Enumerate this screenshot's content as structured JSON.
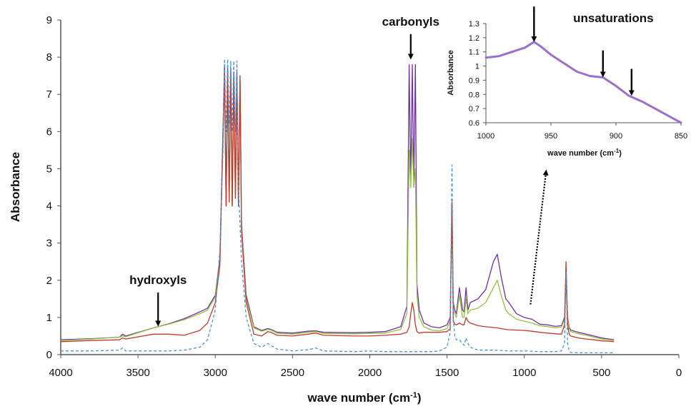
{
  "chart_data": [
    {
      "type": "line",
      "xlabel": "wave number (cm",
      "xlabel_sup": "-1",
      "xlabel_close": ")",
      "ylabel": "Absorbance",
      "xlim": [
        4000,
        0
      ],
      "ylim": [
        0,
        9
      ],
      "x_ticks": [
        "4000",
        "3500",
        "3000",
        "2500",
        "2000",
        "1500",
        "1000",
        "500",
        "0"
      ],
      "y_ticks": [
        "0",
        "1",
        "2",
        "3",
        "4",
        "5",
        "6",
        "7",
        "8",
        "9"
      ],
      "grid": false,
      "series": [
        {
          "color": "#7030A0",
          "style": "solid",
          "x": [
            4000,
            3800,
            3620,
            3600,
            3580,
            3400,
            3300,
            3200,
            3100,
            3050,
            3000,
            2970,
            2940,
            2930,
            2920,
            2910,
            2900,
            2890,
            2880,
            2870,
            2860,
            2850,
            2840,
            2830,
            2800,
            2750,
            2700,
            2660,
            2640,
            2600,
            2500,
            2400,
            2350,
            2300,
            2100,
            2000,
            1900,
            1800,
            1760,
            1745,
            1735,
            1725,
            1715,
            1705,
            1695,
            1680,
            1650,
            1600,
            1550,
            1500,
            1480,
            1468,
            1460,
            1450,
            1440,
            1420,
            1400,
            1390,
            1377,
            1365,
            1350,
            1300,
            1250,
            1200,
            1175,
            1150,
            1120,
            1100,
            1050,
            1000,
            950,
            900,
            850,
            800,
            760,
            740,
            730,
            720,
            710,
            700,
            650,
            600,
            550,
            500,
            450,
            420
          ],
          "y": [
            0.4,
            0.43,
            0.47,
            0.55,
            0.5,
            0.72,
            0.83,
            0.97,
            1.15,
            1.25,
            1.6,
            2.6,
            7.8,
            4.0,
            7.7,
            4.2,
            7.7,
            4.0,
            7.6,
            4.3,
            7.6,
            4.0,
            7.5,
            3.5,
            1.6,
            0.75,
            0.65,
            0.7,
            0.68,
            0.6,
            0.58,
            0.63,
            0.64,
            0.6,
            0.59,
            0.6,
            0.62,
            0.75,
            1.3,
            7.8,
            4.5,
            7.8,
            4.5,
            7.8,
            1.9,
            1.2,
            0.85,
            0.75,
            0.72,
            0.8,
            1.0,
            4.0,
            1.4,
            1.2,
            1.1,
            1.8,
            1.2,
            1.15,
            1.8,
            1.2,
            1.4,
            1.5,
            1.75,
            2.5,
            2.7,
            2.1,
            1.5,
            1.4,
            1.1,
            1.0,
            0.95,
            0.82,
            0.8,
            0.76,
            0.78,
            1.0,
            2.1,
            1.0,
            0.74,
            0.66,
            0.6,
            0.55,
            0.5,
            0.45,
            0.42,
            0.4
          ]
        },
        {
          "color": "#92C13F",
          "style": "solid",
          "x": [
            4000,
            3800,
            3620,
            3600,
            3580,
            3400,
            3300,
            3200,
            3100,
            3050,
            3000,
            2970,
            2940,
            2930,
            2920,
            2910,
            2900,
            2890,
            2880,
            2870,
            2860,
            2850,
            2840,
            2830,
            2800,
            2750,
            2700,
            2660,
            2640,
            2600,
            2500,
            2400,
            2350,
            2300,
            2100,
            2000,
            1900,
            1800,
            1760,
            1745,
            1735,
            1725,
            1715,
            1705,
            1695,
            1680,
            1650,
            1600,
            1550,
            1500,
            1480,
            1468,
            1460,
            1450,
            1440,
            1420,
            1400,
            1390,
            1377,
            1365,
            1350,
            1300,
            1250,
            1200,
            1175,
            1150,
            1120,
            1100,
            1050,
            1000,
            950,
            900,
            850,
            800,
            760,
            740,
            730,
            720,
            710,
            700,
            650,
            600,
            550,
            500,
            450,
            420
          ],
          "y": [
            0.38,
            0.42,
            0.47,
            0.5,
            0.48,
            0.72,
            0.82,
            0.94,
            1.1,
            1.2,
            1.55,
            2.5,
            7.6,
            4.0,
            7.6,
            4.1,
            7.6,
            4.0,
            7.5,
            4.2,
            7.5,
            4.0,
            7.4,
            3.4,
            1.5,
            0.72,
            0.63,
            0.68,
            0.66,
            0.58,
            0.55,
            0.6,
            0.62,
            0.57,
            0.56,
            0.57,
            0.58,
            0.68,
            1.1,
            5.5,
            4.5,
            5.8,
            4.5,
            5.0,
            1.6,
            1.0,
            0.75,
            0.66,
            0.64,
            0.7,
            0.9,
            3.9,
            1.2,
            1.1,
            1.0,
            1.6,
            1.0,
            1.0,
            1.5,
            1.1,
            1.2,
            1.25,
            1.4,
            1.8,
            2.0,
            1.6,
            1.2,
            1.1,
            0.95,
            0.9,
            0.85,
            0.78,
            0.75,
            0.72,
            0.74,
            0.95,
            2.3,
            0.95,
            0.7,
            0.62,
            0.56,
            0.52,
            0.47,
            0.42,
            0.4,
            0.38
          ]
        },
        {
          "color": "#C0392B",
          "style": "solid",
          "x": [
            4000,
            3800,
            3620,
            3600,
            3580,
            3400,
            3300,
            3200,
            3100,
            3050,
            3000,
            2970,
            2940,
            2930,
            2920,
            2910,
            2900,
            2890,
            2880,
            2870,
            2860,
            2850,
            2840,
            2830,
            2800,
            2750,
            2700,
            2660,
            2640,
            2600,
            2500,
            2400,
            2350,
            2300,
            2100,
            2000,
            1900,
            1800,
            1760,
            1745,
            1735,
            1725,
            1715,
            1705,
            1695,
            1680,
            1650,
            1600,
            1550,
            1500,
            1480,
            1468,
            1460,
            1450,
            1440,
            1420,
            1400,
            1390,
            1377,
            1365,
            1350,
            1300,
            1250,
            1200,
            1175,
            1150,
            1120,
            1100,
            1050,
            1000,
            950,
            900,
            850,
            800,
            760,
            740,
            730,
            720,
            710,
            700,
            650,
            600,
            550,
            500,
            450,
            420
          ],
          "y": [
            0.35,
            0.38,
            0.4,
            0.45,
            0.42,
            0.55,
            0.55,
            0.52,
            0.65,
            0.85,
            1.4,
            2.4,
            7.6,
            4.0,
            7.6,
            4.1,
            7.6,
            4.0,
            7.5,
            4.2,
            7.5,
            4.0,
            7.4,
            3.3,
            1.4,
            0.55,
            0.5,
            0.62,
            0.6,
            0.52,
            0.5,
            0.55,
            0.58,
            0.52,
            0.5,
            0.5,
            0.52,
            0.55,
            0.6,
            0.75,
            1.1,
            1.4,
            1.2,
            0.8,
            0.62,
            0.58,
            0.6,
            0.6,
            0.6,
            0.62,
            0.7,
            4.1,
            0.9,
            0.82,
            0.8,
            0.85,
            0.8,
            0.8,
            1.0,
            0.9,
            0.85,
            0.78,
            0.75,
            0.73,
            0.72,
            0.7,
            0.68,
            0.67,
            0.66,
            0.65,
            0.63,
            0.6,
            0.58,
            0.56,
            0.55,
            0.8,
            2.5,
            0.8,
            0.55,
            0.5,
            0.45,
            0.42,
            0.4,
            0.37,
            0.36,
            0.35
          ]
        },
        {
          "color": "#4A90D9",
          "style": "dashed",
          "x": [
            4000,
            3800,
            3620,
            3600,
            3580,
            3400,
            3300,
            3200,
            3100,
            3050,
            3000,
            2970,
            2950,
            2940,
            2930,
            2920,
            2910,
            2900,
            2890,
            2880,
            2870,
            2860,
            2850,
            2840,
            2830,
            2800,
            2750,
            2700,
            2660,
            2640,
            2600,
            2500,
            2400,
            2350,
            2300,
            2100,
            2000,
            1900,
            1800,
            1760,
            1730,
            1700,
            1600,
            1550,
            1500,
            1480,
            1468,
            1460,
            1450,
            1440,
            1420,
            1400,
            1390,
            1377,
            1365,
            1350,
            1300,
            1250,
            1200,
            1100,
            1000,
            900,
            800,
            760,
            740,
            730,
            720,
            710,
            700,
            650,
            600,
            550,
            500,
            450,
            420
          ],
          "y": [
            0.1,
            0.1,
            0.12,
            0.18,
            0.1,
            0.1,
            0.1,
            0.12,
            0.2,
            0.4,
            1.2,
            2.8,
            5.5,
            7.95,
            6.0,
            7.95,
            6.2,
            7.9,
            6.0,
            7.9,
            6.0,
            7.9,
            4.5,
            3.5,
            2.5,
            1.0,
            0.3,
            0.2,
            0.3,
            0.25,
            0.15,
            0.1,
            0.13,
            0.18,
            0.1,
            0.08,
            0.1,
            0.08,
            0.08,
            0.08,
            0.08,
            0.08,
            0.08,
            0.1,
            0.2,
            0.6,
            5.1,
            1.0,
            0.5,
            0.4,
            0.4,
            0.3,
            0.25,
            0.45,
            0.3,
            0.2,
            0.12,
            0.12,
            0.12,
            0.1,
            0.1,
            0.08,
            0.08,
            0.1,
            0.3,
            2.2,
            0.3,
            0.1,
            0.06,
            0.05,
            0.05,
            0.05,
            0.05,
            0.05,
            0.05
          ]
        }
      ],
      "annotations": [
        {
          "text": "hydroxyls",
          "x": 3370,
          "y": 1.9,
          "arrow_to": [
            3370,
            0.72
          ]
        },
        {
          "text": "carbonyls",
          "x": 1735,
          "y": 8.85,
          "arrow_to": [
            1735,
            7.9
          ]
        }
      ],
      "callout_arrow": {
        "from": [
          960,
          1.35
        ],
        "to": [
          860,
          4.9
        ],
        "style": "dotted"
      }
    },
    {
      "type": "line",
      "xlabel": "wave number (cm",
      "xlabel_sup": "-1",
      "xlabel_close": ")",
      "ylabel": "Absorbance",
      "xlim": [
        1000,
        850
      ],
      "ylim": [
        0.6,
        1.3
      ],
      "x_ticks": [
        "1000",
        "950",
        "900",
        "850"
      ],
      "y_ticks": [
        "0.6",
        "0.7",
        "0.8",
        "0.9",
        "1",
        "1.1",
        "1.2",
        "1.3"
      ],
      "series": [
        {
          "color": "#9B6FCF",
          "x": [
            1000,
            990,
            980,
            970,
            963,
            958,
            950,
            940,
            930,
            920,
            910,
            900,
            890,
            880,
            870,
            860,
            850
          ],
          "y": [
            1.06,
            1.07,
            1.1,
            1.13,
            1.17,
            1.14,
            1.08,
            1.02,
            0.96,
            0.93,
            0.92,
            0.86,
            0.79,
            0.75,
            0.7,
            0.65,
            0.6
          ]
        }
      ],
      "annotations": [
        {
          "text": "unsaturations",
          "x": 902,
          "y": 1.31
        }
      ],
      "arrows": [
        {
          "x": 963,
          "y_top": 1.42,
          "y_bottom": 1.19
        },
        {
          "x": 910,
          "y_top": 1.11,
          "y_bottom": 0.94
        },
        {
          "x": 888,
          "y_top": 0.98,
          "y_bottom": 0.81
        }
      ]
    }
  ]
}
